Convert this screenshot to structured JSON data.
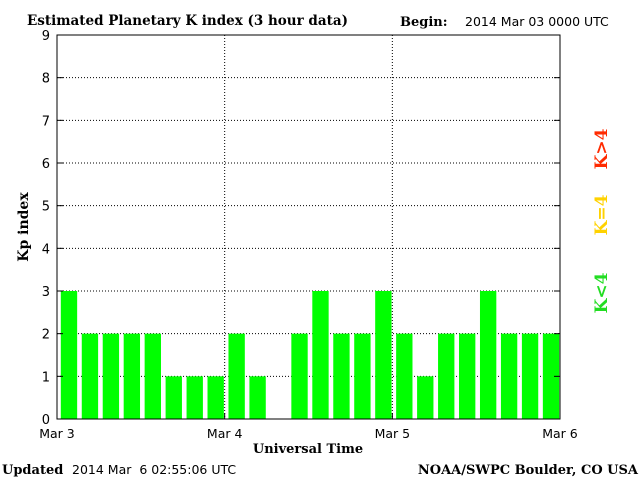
{
  "title": "Estimated Planetary K index (3 hour data)",
  "begin_label": "Begin:",
  "begin_value": "2014 Mar 03 0000 UTC",
  "updated_label": "Updated",
  "updated_value": "2014 Mar  6 02:55:06 UTC",
  "credit": "NOAA/SWPC Boulder, CO USA",
  "legend": [
    {
      "label": "K>4",
      "color": "#ff2a00"
    },
    {
      "label": "K=4",
      "color": "#ffd200"
    },
    {
      "label": "K<4",
      "color": "#22dd22"
    }
  ],
  "chart_data": {
    "type": "bar",
    "ylabel": "Kp index",
    "xlabel": "Universal Time",
    "ylim": [
      0,
      9
    ],
    "yticks": [
      "0",
      "1",
      "2",
      "3",
      "4",
      "5",
      "6",
      "7",
      "8",
      "9"
    ],
    "xticks": [
      "Mar 3",
      "Mar 4",
      "Mar 5",
      "Mar 6"
    ],
    "grid": true,
    "bar_color": "#00ff00",
    "values": [
      3,
      2,
      2,
      2,
      2,
      1,
      1,
      1,
      2,
      1,
      0,
      2,
      3,
      2,
      2,
      3,
      2,
      1,
      2,
      2,
      3,
      2,
      2,
      2
    ]
  }
}
